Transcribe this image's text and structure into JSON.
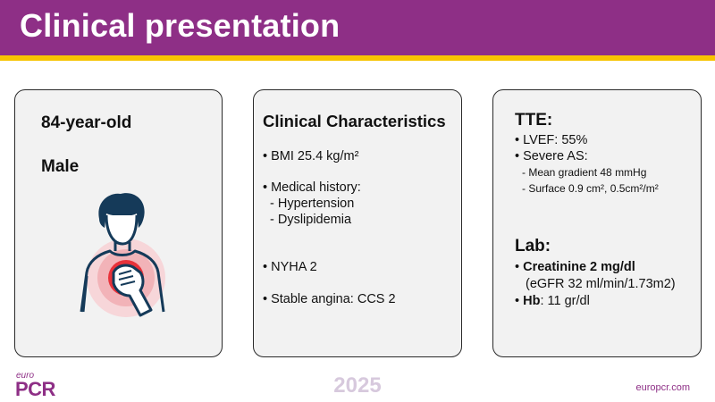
{
  "slide": {
    "title": "Clinical presentation",
    "colors": {
      "header": "#8e2f86",
      "stripe": "#f7c400",
      "accent_red": "#e8323a"
    }
  },
  "patient": {
    "age": "84-year-old",
    "sex": "Male",
    "illustration_icon": "chest-pain-person-icon"
  },
  "clinical": {
    "heading": "Clinical Characteristics",
    "bmi": "• BMI 25.4 kg/m²",
    "history_label": "• Medical history:",
    "history_items": [
      "- Hypertension",
      "- Dyslipidemia"
    ],
    "nyha": "• NYHA 2",
    "angina": "• Stable angina: CCS 2"
  },
  "tte": {
    "heading": "TTE:",
    "lvef": "• LVEF: 55%",
    "severe_as": "• Severe AS:",
    "gradient": "- Mean gradient 48 mmHg",
    "surface": "- Surface 0.9 cm², 0.5cm²/m²"
  },
  "lab": {
    "heading": "Lab:",
    "creatinine_bullet": "• ",
    "creatinine": "Creatinine 2 mg/dl",
    "egfr": "(eGFR 32 ml/min/1.73m2)",
    "hb_bullet": "• ",
    "hb_label": "Hb",
    "hb_value": ": 11 gr/dl"
  },
  "footer": {
    "year": "2025",
    "logo_top": "euro",
    "logo_main": "PCR",
    "url": "europcr.com"
  }
}
